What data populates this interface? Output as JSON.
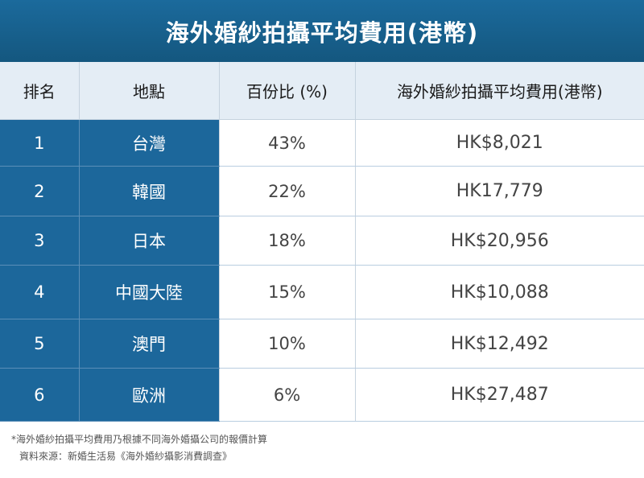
{
  "title": "海外婚紗拍攝平均費用(港幣)",
  "chart_data": {
    "type": "table",
    "title": "海外婚紗拍攝平均費用(港幣)",
    "columns": [
      "排名",
      "地點",
      "百份比 (%)",
      "海外婚紗拍攝平均費用(港幣)"
    ],
    "rows": [
      {
        "rank": "1",
        "location": "台灣",
        "percent": "43%",
        "cost": "HK$8,021"
      },
      {
        "rank": "2",
        "location": "韓國",
        "percent": "22%",
        "cost": "HK17,779"
      },
      {
        "rank": "3",
        "location": "日本",
        "percent": "18%",
        "cost": "HK$20,956"
      },
      {
        "rank": "4",
        "location": "中國大陸",
        "percent": "15%",
        "cost": "HK$10,088"
      },
      {
        "rank": "5",
        "location": "澳門",
        "percent": "10%",
        "cost": "HK$12,492"
      },
      {
        "rank": "6",
        "location": "歐洲",
        "percent": "6%",
        "cost": "HK$27,487"
      }
    ]
  },
  "notes": {
    "footnote": "*海外婚紗拍攝平均費用乃根據不同海外婚攝公司的報價計算",
    "source": "資料來源：新婚生活易《海外婚紗攝影消費調查》"
  },
  "colors": {
    "header_blue": "#1b6a9c",
    "column_blue": "#1c679b",
    "header_row_bg": "#e4edf5"
  }
}
